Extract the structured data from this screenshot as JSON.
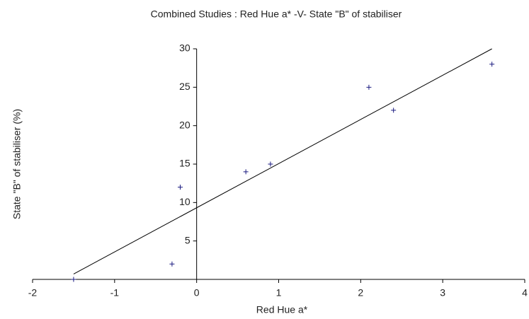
{
  "chart_data": {
    "type": "scatter",
    "title": "Combined Studies : Red Hue a* -V- State \"B\" of  stabiliser",
    "x_label": "Red Hue a*",
    "y_label": "State \"B\" of stabiliser (%)",
    "series": [
      {
        "color": "#1a1a80",
        "x": [
          -1.5,
          -0.3,
          -0.2,
          0.6,
          0.9,
          2.1,
          2.4,
          3.6
        ],
        "values": [
          0,
          2,
          12,
          14,
          15,
          25,
          22,
          28
        ]
      }
    ],
    "trend_line": {
      "color": "#000000",
      "x": [
        -1.5,
        3.6
      ],
      "y": [
        0.7,
        30
      ]
    },
    "xlim": [
      -2,
      4
    ],
    "xticks": [
      -2,
      -1,
      0,
      1,
      2,
      3,
      4
    ],
    "ylim": [
      0,
      30
    ],
    "yticks": [
      5,
      10,
      15,
      20,
      25,
      30
    ]
  }
}
